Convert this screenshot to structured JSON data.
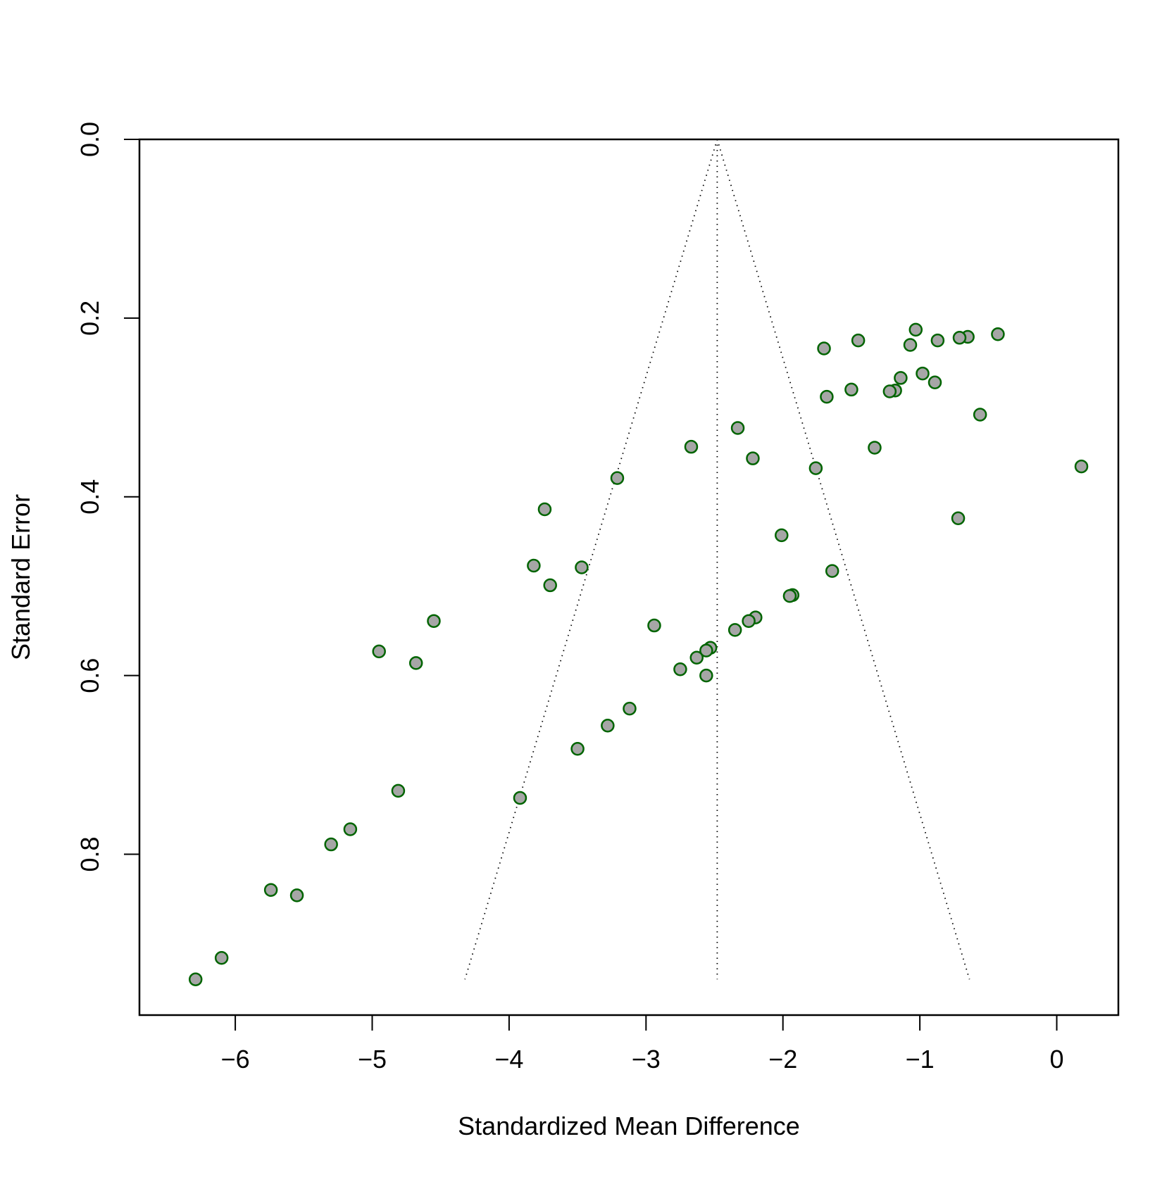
{
  "chart_data": {
    "type": "scatter",
    "title": "",
    "xlabel": "Standardized Mean Difference",
    "ylabel": "Standard Error",
    "xlim": [
      -6.7,
      0.45
    ],
    "ylim": [
      0.0,
      0.98
    ],
    "y_reversed": true,
    "x_ticks": [
      -6,
      -5,
      -4,
      -3,
      -2,
      -1,
      0
    ],
    "x_tick_labels": [
      "−6",
      "−5",
      "−4",
      "−3",
      "−2",
      "−1",
      "0"
    ],
    "y_ticks": [
      0.0,
      0.2,
      0.4,
      0.6,
      0.8
    ],
    "y_tick_labels": [
      "0.0",
      "0.2",
      "0.4",
      "0.6",
      "0.8"
    ],
    "grid": false,
    "legend": "none",
    "funnel": {
      "center": -2.48,
      "se_max": 0.94,
      "z": 1.96,
      "line_style": "dotted"
    },
    "point_style": {
      "fill": "#a6a6a6",
      "stroke": "#006400"
    },
    "points": [
      {
        "x": -1.03,
        "y": 0.213
      },
      {
        "x": -0.43,
        "y": 0.218
      },
      {
        "x": -0.65,
        "y": 0.221
      },
      {
        "x": -0.71,
        "y": 0.222
      },
      {
        "x": -0.87,
        "y": 0.225
      },
      {
        "x": -1.45,
        "y": 0.225
      },
      {
        "x": -1.07,
        "y": 0.23
      },
      {
        "x": -1.7,
        "y": 0.234
      },
      {
        "x": -0.98,
        "y": 0.262
      },
      {
        "x": -1.14,
        "y": 0.267
      },
      {
        "x": -0.89,
        "y": 0.272
      },
      {
        "x": -1.5,
        "y": 0.28
      },
      {
        "x": -1.18,
        "y": 0.281
      },
      {
        "x": -1.22,
        "y": 0.282
      },
      {
        "x": -1.68,
        "y": 0.288
      },
      {
        "x": -0.56,
        "y": 0.308
      },
      {
        "x": -2.33,
        "y": 0.323
      },
      {
        "x": -2.67,
        "y": 0.344
      },
      {
        "x": -1.33,
        "y": 0.345
      },
      {
        "x": -2.22,
        "y": 0.357
      },
      {
        "x": 0.18,
        "y": 0.366
      },
      {
        "x": -1.76,
        "y": 0.368
      },
      {
        "x": -3.21,
        "y": 0.379
      },
      {
        "x": -3.74,
        "y": 0.414
      },
      {
        "x": -0.72,
        "y": 0.424
      },
      {
        "x": -2.01,
        "y": 0.443
      },
      {
        "x": -3.82,
        "y": 0.477
      },
      {
        "x": -3.47,
        "y": 0.479
      },
      {
        "x": -1.64,
        "y": 0.483
      },
      {
        "x": -3.7,
        "y": 0.499
      },
      {
        "x": -1.93,
        "y": 0.51
      },
      {
        "x": -1.95,
        "y": 0.511
      },
      {
        "x": -2.2,
        "y": 0.535
      },
      {
        "x": -2.25,
        "y": 0.539
      },
      {
        "x": -4.55,
        "y": 0.539
      },
      {
        "x": -2.94,
        "y": 0.544
      },
      {
        "x": -2.35,
        "y": 0.549
      },
      {
        "x": -2.53,
        "y": 0.569
      },
      {
        "x": -2.56,
        "y": 0.572
      },
      {
        "x": -4.95,
        "y": 0.573
      },
      {
        "x": -2.63,
        "y": 0.58
      },
      {
        "x": -4.68,
        "y": 0.586
      },
      {
        "x": -2.75,
        "y": 0.593
      },
      {
        "x": -2.56,
        "y": 0.6
      },
      {
        "x": -3.12,
        "y": 0.637
      },
      {
        "x": -3.28,
        "y": 0.656
      },
      {
        "x": -3.5,
        "y": 0.682
      },
      {
        "x": -4.81,
        "y": 0.729
      },
      {
        "x": -3.92,
        "y": 0.737
      },
      {
        "x": -5.16,
        "y": 0.772
      },
      {
        "x": -5.3,
        "y": 0.789
      },
      {
        "x": -5.74,
        "y": 0.84
      },
      {
        "x": -5.55,
        "y": 0.846
      },
      {
        "x": -6.1,
        "y": 0.916
      },
      {
        "x": -6.29,
        "y": 0.94
      }
    ]
  }
}
